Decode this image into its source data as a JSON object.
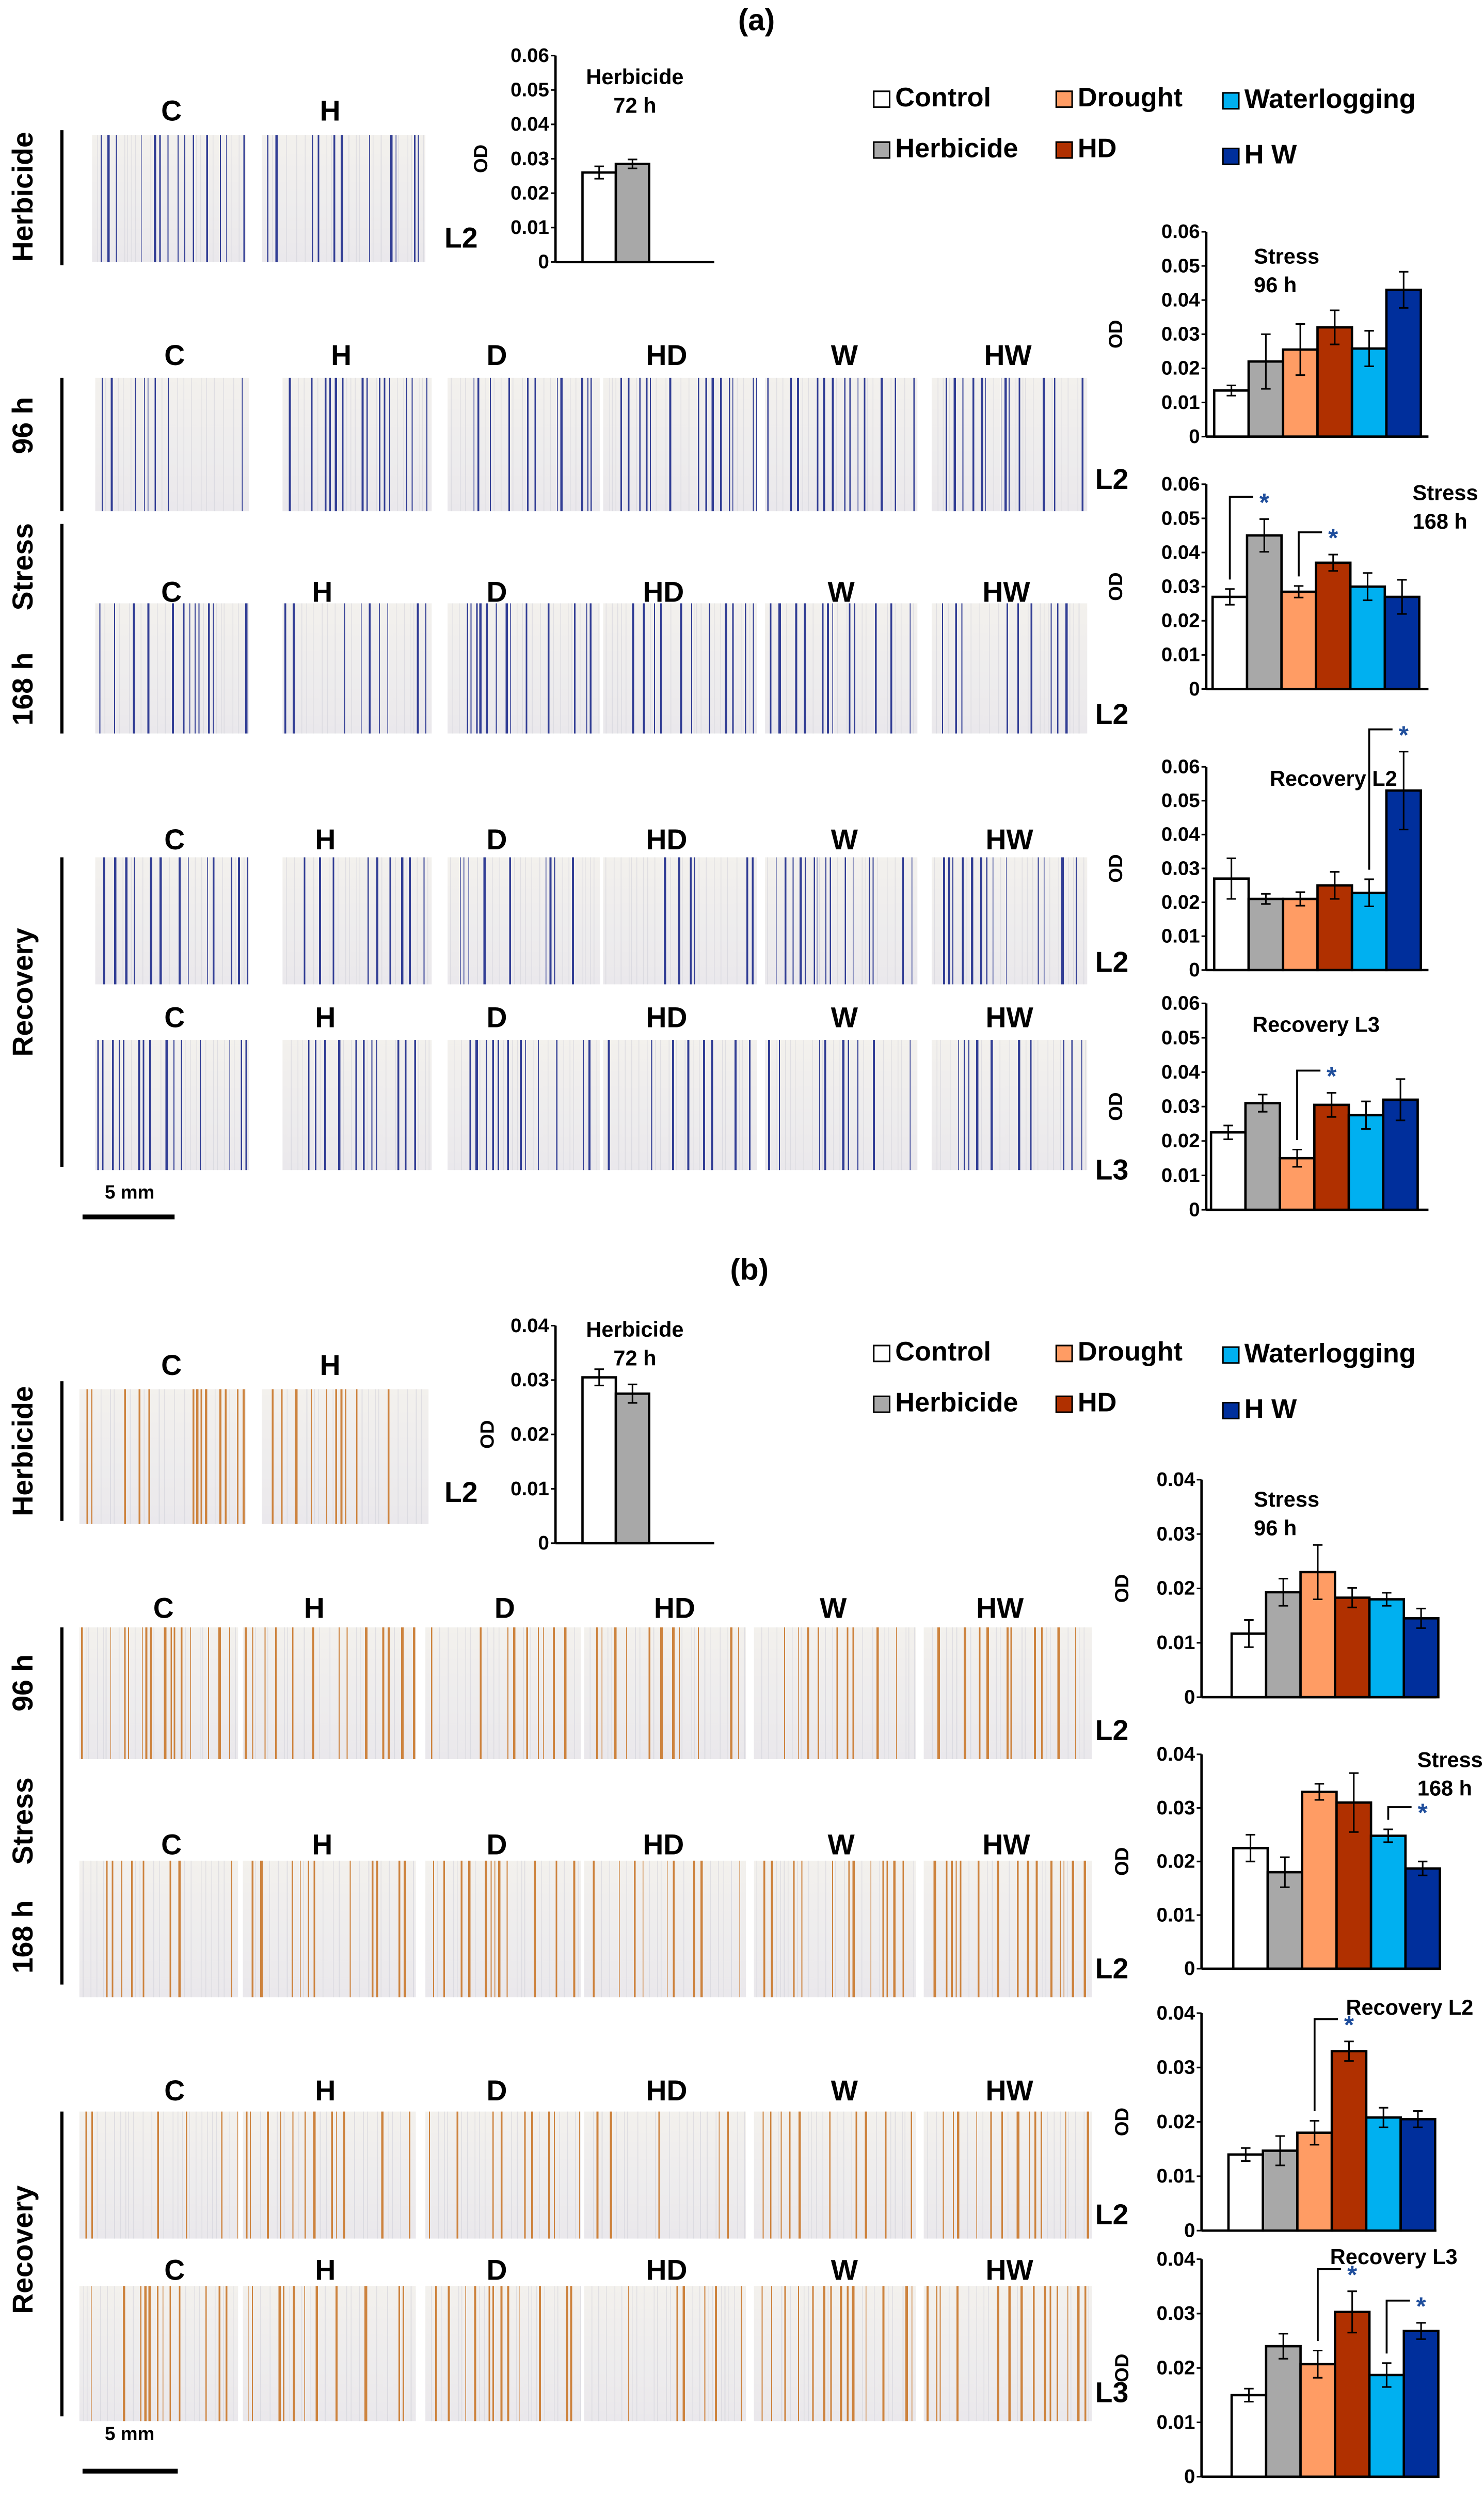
{
  "colors": {
    "Control": "#ffffff",
    "Herbicide": "#a8a8a8",
    "Drought": "#ff9c64",
    "HD": "#b03000",
    "Waterlogging": "#00b0f0",
    "HW": "#002f9c",
    "stain_a": "#1c2a8a",
    "stain_b": "#c8762a"
  },
  "legend": [
    {
      "key": "Control",
      "label": "Control"
    },
    {
      "key": "Drought",
      "label": "Drought"
    },
    {
      "key": "Waterlogging",
      "label": "Waterlogging"
    },
    {
      "key": "Herbicide",
      "label": "Herbicide"
    },
    {
      "key": "HD",
      "label": "HD"
    },
    {
      "key": "HW",
      "label": "H W"
    }
  ],
  "panels": [
    {
      "label": "(a)",
      "groups": [
        "Herbicide",
        "96 h",
        "Stress",
        "168 h",
        "Recovery"
      ],
      "rows": [
        {
          "images": [
            "C",
            "H"
          ],
          "leaf": "L2"
        },
        {
          "images": [
            "C",
            "H",
            "D",
            "HD",
            "W",
            "HW"
          ],
          "leaf": "L2"
        },
        {
          "images": [
            "C",
            "H",
            "D",
            "HD",
            "W",
            "HW"
          ],
          "leaf": "L2"
        },
        {
          "images": [
            "C",
            "H",
            "D",
            "HD",
            "W",
            "HW"
          ],
          "leaf": "L2"
        },
        {
          "images": [
            "C",
            "H",
            "D",
            "HD",
            "W",
            "HW"
          ],
          "leaf": "L3"
        }
      ],
      "scale_bar": "5 mm"
    },
    {
      "label": "(b)",
      "groups": [
        "Herbicide",
        "96 h",
        "Stress",
        "168 h",
        "Recovery"
      ],
      "rows": [
        {
          "images": [
            "C",
            "H"
          ],
          "leaf": "L2"
        },
        {
          "images": [
            "C",
            "H",
            "D",
            "HD",
            "W",
            "HW"
          ],
          "leaf": "L2"
        },
        {
          "images": [
            "C",
            "H",
            "D",
            "HD",
            "W",
            "HW"
          ],
          "leaf": "L2"
        },
        {
          "images": [
            "C",
            "H",
            "D",
            "HD",
            "W",
            "HW"
          ],
          "leaf": "L2"
        },
        {
          "images": [
            "C",
            "H",
            "D",
            "HD",
            "W",
            "HW"
          ],
          "leaf": "L3"
        }
      ],
      "scale_bar": "5 mm"
    }
  ],
  "chart_data": [
    {
      "type": "bar",
      "panel": "(a)",
      "title": [
        "Herbicide",
        "72 h"
      ],
      "ylabel": "OD",
      "ylim": [
        0,
        0.06
      ],
      "yticks": [
        "0",
        "0.01",
        "0.02",
        "0.03",
        "0.04",
        "0.05",
        "0.06"
      ],
      "categories": [
        "Control",
        "Herbicide"
      ],
      "values": [
        0.026,
        0.0285
      ],
      "errors": [
        0.0018,
        0.0013
      ],
      "significance": [],
      "sig_marker": "*"
    },
    {
      "type": "bar",
      "panel": "(a)",
      "title": [
        "Stress",
        "96 h"
      ],
      "ylabel": "OD",
      "ylim": [
        0,
        0.06
      ],
      "yticks": [
        "0",
        "0.01",
        "0.02",
        "0.03",
        "0.04",
        "0.05",
        "0.06"
      ],
      "categories": [
        "Control",
        "Herbicide",
        "Drought",
        "HD",
        "Waterlogging",
        "HW"
      ],
      "values": [
        0.0135,
        0.022,
        0.0255,
        0.032,
        0.0258,
        0.043
      ],
      "errors": [
        0.0015,
        0.008,
        0.0075,
        0.005,
        0.0052,
        0.0053
      ],
      "significance": [],
      "sig_marker": "*"
    },
    {
      "type": "bar",
      "panel": "(a)",
      "title": [
        "Stress",
        "168 h"
      ],
      "ylabel": "OD",
      "ylim": [
        0,
        0.06
      ],
      "yticks": [
        "0",
        "0.01",
        "0.02",
        "0.03",
        "0.04",
        "0.05",
        "0.06"
      ],
      "categories": [
        "Control",
        "Herbicide",
        "Drought",
        "HD",
        "Waterlogging",
        "HW"
      ],
      "values": [
        0.027,
        0.045,
        0.0285,
        0.037,
        0.03,
        0.027
      ],
      "errors": [
        0.0023,
        0.0048,
        0.0017,
        0.0024,
        0.004,
        0.005
      ],
      "significance": [
        [
          0,
          1
        ],
        [
          2,
          3
        ]
      ],
      "sig_marker": "*"
    },
    {
      "type": "bar",
      "panel": "(a)",
      "title": [
        "Recovery L2"
      ],
      "ylabel": "OD",
      "ylim": [
        0,
        0.06
      ],
      "yticks": [
        "0",
        "0.01",
        "0.02",
        "0.03",
        "0.04",
        "0.05",
        "0.06"
      ],
      "categories": [
        "Control",
        "Herbicide",
        "Drought",
        "HD",
        "Waterlogging",
        "HW"
      ],
      "values": [
        0.027,
        0.021,
        0.021,
        0.025,
        0.0228,
        0.053
      ],
      "errors": [
        0.006,
        0.0015,
        0.002,
        0.004,
        0.004,
        0.0115
      ],
      "significance": [
        [
          4,
          5
        ]
      ],
      "sig_marker": "*"
    },
    {
      "type": "bar",
      "panel": "(a)",
      "title": [
        "Recovery L3"
      ],
      "ylabel": "OD",
      "ylim": [
        0,
        0.06
      ],
      "yticks": [
        "0",
        "0.01",
        "0.02",
        "0.03",
        "0.04",
        "0.05",
        "0.06"
      ],
      "categories": [
        "Control",
        "Herbicide",
        "Drought",
        "HD",
        "Waterlogging",
        "HW"
      ],
      "values": [
        0.0225,
        0.031,
        0.015,
        0.0305,
        0.0275,
        0.032
      ],
      "errors": [
        0.002,
        0.0025,
        0.0025,
        0.0035,
        0.004,
        0.006
      ],
      "significance": [
        [
          2,
          3
        ]
      ],
      "sig_marker": "*"
    },
    {
      "type": "bar",
      "panel": "(b)",
      "title": [
        "Herbicide",
        "72 h"
      ],
      "ylabel": "OD",
      "ylim": [
        0,
        0.04
      ],
      "yticks": [
        "0",
        "0.01",
        "0.02",
        "0.03",
        "0.04"
      ],
      "categories": [
        "Control",
        "Herbicide"
      ],
      "values": [
        0.0305,
        0.0275
      ],
      "errors": [
        0.0015,
        0.0017
      ],
      "significance": [],
      "sig_marker": "*"
    },
    {
      "type": "bar",
      "panel": "(b)",
      "title": [
        "Stress",
        "96 h"
      ],
      "ylabel": "OD",
      "ylim": [
        0,
        0.04
      ],
      "yticks": [
        "0",
        "0.01",
        "0.02",
        "0.03",
        "0.04"
      ],
      "categories": [
        "Control",
        "Herbicide",
        "Drought",
        "HD",
        "Waterlogging",
        "HW"
      ],
      "values": [
        0.0117,
        0.0193,
        0.023,
        0.0183,
        0.018,
        0.0145
      ],
      "errors": [
        0.0025,
        0.0025,
        0.005,
        0.0018,
        0.0012,
        0.0018
      ],
      "significance": [],
      "sig_marker": "*"
    },
    {
      "type": "bar",
      "panel": "(b)",
      "title": [
        "Stress",
        "168 h"
      ],
      "ylabel": "OD",
      "ylim": [
        0,
        0.04
      ],
      "yticks": [
        "0",
        "0.01",
        "0.02",
        "0.03",
        "0.04"
      ],
      "categories": [
        "Control",
        "Herbicide",
        "Drought",
        "HD",
        "Waterlogging",
        "HW"
      ],
      "values": [
        0.0225,
        0.018,
        0.033,
        0.031,
        0.0248,
        0.0187
      ],
      "errors": [
        0.0025,
        0.0028,
        0.0015,
        0.0055,
        0.0012,
        0.0013
      ],
      "significance": [
        [
          4,
          5
        ]
      ],
      "sig_marker": "*"
    },
    {
      "type": "bar",
      "panel": "(b)",
      "title": [
        "Recovery L2"
      ],
      "ylabel": "OD",
      "ylim": [
        0,
        0.04
      ],
      "yticks": [
        "0",
        "0.01",
        "0.02",
        "0.03",
        "0.04"
      ],
      "categories": [
        "Control",
        "Herbicide",
        "Drought",
        "HD",
        "Waterlogging",
        "HW"
      ],
      "values": [
        0.014,
        0.0147,
        0.018,
        0.033,
        0.0208,
        0.0205
      ],
      "errors": [
        0.0012,
        0.0027,
        0.0022,
        0.0018,
        0.0018,
        0.0015
      ],
      "significance": [
        [
          2,
          3
        ]
      ],
      "sig_marker": "*"
    },
    {
      "type": "bar",
      "panel": "(b)",
      "title": [
        "Recovery L3"
      ],
      "ylabel": "OD",
      "ylim": [
        0,
        0.04
      ],
      "yticks": [
        "0",
        "0.01",
        "0.02",
        "0.03",
        "0.04"
      ],
      "categories": [
        "Control",
        "Herbicide",
        "Drought",
        "HD",
        "Waterlogging",
        "HW"
      ],
      "values": [
        0.015,
        0.024,
        0.0207,
        0.0303,
        0.0187,
        0.0268
      ],
      "errors": [
        0.0012,
        0.0023,
        0.0025,
        0.0038,
        0.0022,
        0.0015
      ],
      "significance": [
        [
          2,
          3
        ],
        [
          4,
          5
        ]
      ],
      "sig_marker": "*"
    }
  ]
}
